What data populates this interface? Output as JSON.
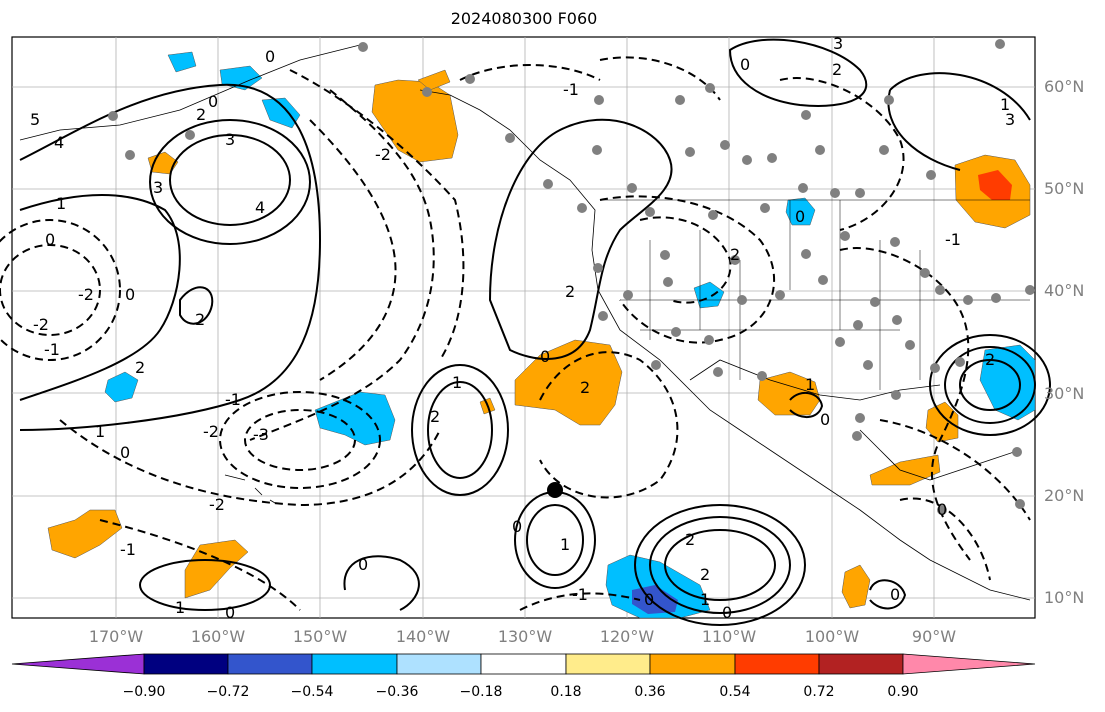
{
  "title": "2024080300 F060",
  "lat_labels": [
    "60°N",
    "50°N",
    "40°N",
    "30°N",
    "20°N",
    "10°N"
  ],
  "lon_labels": [
    "170°W",
    "160°W",
    "150°W",
    "140°W",
    "130°W",
    "120°W",
    "110°W",
    "100°W",
    "90°W"
  ],
  "colorbar": {
    "ticks": [
      "−0.90",
      "−0.72",
      "−0.54",
      "−0.36",
      "−0.18",
      "0.18",
      "0.36",
      "0.54",
      "0.72",
      "0.90"
    ],
    "colors": [
      "#9b30d6",
      "#000080",
      "#3355cc",
      "#00bfff",
      "#aee1ff",
      "#ffffff",
      "#ffec8b",
      "#ffa500",
      "#ff3c00",
      "#b22222",
      "#ff88aa"
    ]
  },
  "contour_labels": [
    "5",
    "4",
    "3",
    "2",
    "1",
    "0",
    "-1",
    "-2",
    "-3"
  ],
  "colors": {
    "land_gray": "#808080",
    "positive_fill": "#ffa500",
    "negative_fill": "#00bfff",
    "grid": "#b0b0b0"
  }
}
